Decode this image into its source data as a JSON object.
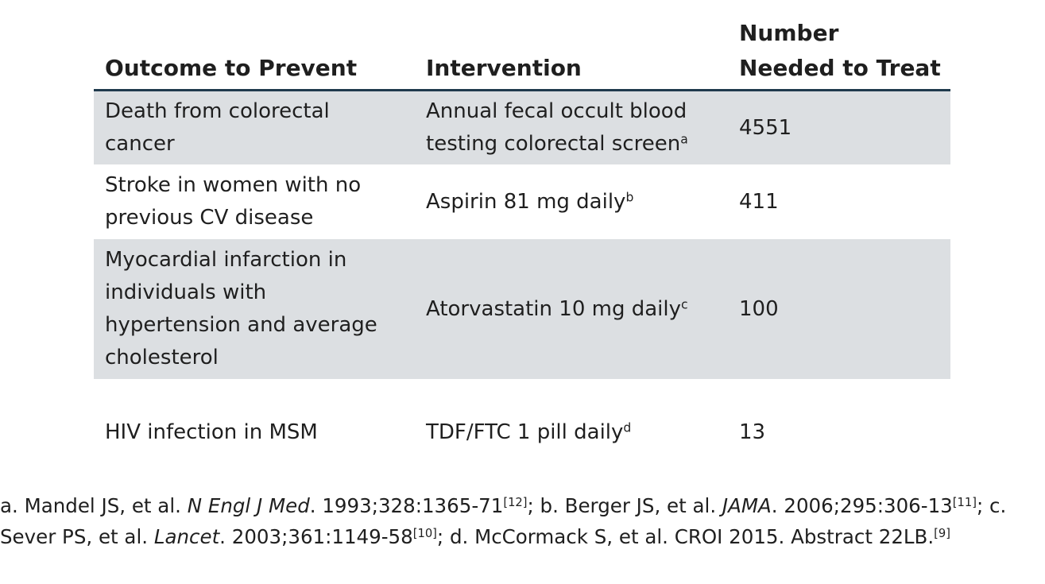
{
  "table": {
    "headers": {
      "outcome": "Outcome to Prevent",
      "intervention": "Intervention",
      "nnt_line1": "Number",
      "nnt_line2": "Needed to Treat"
    },
    "rows": [
      {
        "outcome_lines": [
          "Death from colorectal",
          "cancer"
        ],
        "intervention_lines": [
          "Annual fecal occult blood",
          "testing colorectal screen"
        ],
        "intervention_sup": "a",
        "nnt": "4551"
      },
      {
        "outcome_lines": [
          "Stroke in women with no",
          "previous CV disease"
        ],
        "intervention_lines": [
          "Aspirin 81 mg daily"
        ],
        "intervention_sup": "b",
        "nnt": "411"
      },
      {
        "outcome_lines": [
          "Myocardial infarction in",
          "individuals with",
          "hypertension and average",
          "cholesterol"
        ],
        "intervention_lines": [
          "Atorvastatin 10 mg daily"
        ],
        "intervention_sup": "c",
        "nnt": "100"
      },
      {
        "outcome_lines": [
          "HIV infection in MSM"
        ],
        "intervention_lines": [
          "TDF/FTC 1 pill daily"
        ],
        "intervention_sup": "d",
        "nnt": "13"
      }
    ]
  },
  "footnotes": {
    "a_prefix": "a. Mandel JS, et al. ",
    "a_journal": "N Engl J Med",
    "a_rest": ". 1993;328:1365-71",
    "a_ref": "[12]",
    "b_prefix": "; b. Berger JS, et al. ",
    "b_journal": "JAMA",
    "b_rest": ". 2006;295:306-13",
    "b_ref": "[11]",
    "c_prefix": "; c. Sever PS, et al. ",
    "c_journal": "Lancet",
    "c_rest": ". 2003;361:1149-58",
    "c_ref": "[10]",
    "d_text": "; d. McCormack S, et al. CROI 2015. Abstract 22LB.",
    "d_ref": "[9]"
  }
}
